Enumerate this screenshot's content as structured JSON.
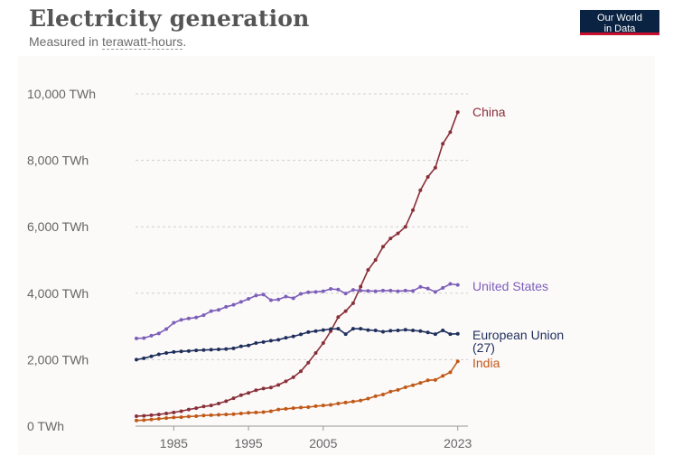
{
  "header": {
    "title": "Electricity generation",
    "subtitle_prefix": "Measured in ",
    "subtitle_term": "terawatt-hours",
    "subtitle_suffix": ".",
    "logo_line1": "Our World",
    "logo_line2": "in Data"
  },
  "chart_data": {
    "type": "line",
    "title": "Electricity generation",
    "subtitle": "Measured in terawatt-hours.",
    "xlim": [
      1980,
      2024
    ],
    "ylim": [
      0,
      10000
    ],
    "x_ticks": [
      1985,
      1995,
      2005,
      2023
    ],
    "y_ticks": [
      {
        "value": 0,
        "label": "0 TWh"
      },
      {
        "value": 2000,
        "label": "2,000 TWh"
      },
      {
        "value": 4000,
        "label": "4,000 TWh"
      },
      {
        "value": 6000,
        "label": "6,000 TWh"
      },
      {
        "value": 8000,
        "label": "8,000 TWh"
      },
      {
        "value": 10000,
        "label": "10,000 TWh"
      }
    ],
    "grid": "horizontal-dotted",
    "legend": "inline-right",
    "x": [
      1980,
      1981,
      1982,
      1983,
      1984,
      1985,
      1986,
      1987,
      1988,
      1989,
      1990,
      1991,
      1992,
      1993,
      1994,
      1995,
      1996,
      1997,
      1998,
      1999,
      2000,
      2001,
      2002,
      2003,
      2004,
      2005,
      2006,
      2007,
      2008,
      2009,
      2010,
      2011,
      2012,
      2013,
      2014,
      2015,
      2016,
      2017,
      2018,
      2019,
      2020,
      2021,
      2022,
      2023
    ],
    "series": [
      {
        "name": "China",
        "color": "#883039",
        "values": [
          300,
          310,
          330,
          350,
          380,
          410,
          450,
          500,
          540,
          590,
          620,
          680,
          750,
          840,
          930,
          1000,
          1080,
          1130,
          1160,
          1240,
          1350,
          1470,
          1650,
          1910,
          2200,
          2500,
          2860,
          3280,
          3460,
          3700,
          4200,
          4700,
          5000,
          5400,
          5650,
          5800,
          6000,
          6500,
          7100,
          7500,
          7780,
          8500,
          8850,
          9450
        ]
      },
      {
        "name": "United States",
        "color": "#7c5fb8",
        "values": [
          2640,
          2650,
          2720,
          2790,
          2920,
          3110,
          3200,
          3240,
          3270,
          3340,
          3460,
          3500,
          3590,
          3650,
          3740,
          3830,
          3930,
          3960,
          3790,
          3810,
          3900,
          3850,
          3980,
          4030,
          4040,
          4060,
          4130,
          4110,
          3990,
          4100,
          4080,
          4070,
          4060,
          4080,
          4080,
          4060,
          4080,
          4070,
          4190,
          4140,
          4040,
          4160,
          4280,
          4250
        ]
      },
      {
        "name": "European Union\n(27)",
        "color": "#1e2f5c",
        "values": [
          2000,
          2040,
          2100,
          2160,
          2200,
          2230,
          2250,
          2260,
          2280,
          2290,
          2300,
          2310,
          2320,
          2340,
          2400,
          2430,
          2500,
          2530,
          2570,
          2600,
          2660,
          2700,
          2760,
          2830,
          2860,
          2890,
          2920,
          2930,
          2770,
          2930,
          2930,
          2890,
          2880,
          2840,
          2870,
          2880,
          2900,
          2880,
          2860,
          2820,
          2770,
          2880,
          2770,
          2780
        ]
      },
      {
        "name": "India",
        "color": "#c05917",
        "values": [
          170,
          180,
          200,
          220,
          240,
          260,
          270,
          290,
          300,
          320,
          330,
          340,
          350,
          360,
          380,
          400,
          410,
          420,
          450,
          500,
          520,
          540,
          560,
          570,
          600,
          620,
          640,
          680,
          710,
          740,
          770,
          830,
          900,
          950,
          1040,
          1090,
          1170,
          1230,
          1300,
          1380,
          1390,
          1510,
          1620,
          1950
        ]
      }
    ]
  }
}
